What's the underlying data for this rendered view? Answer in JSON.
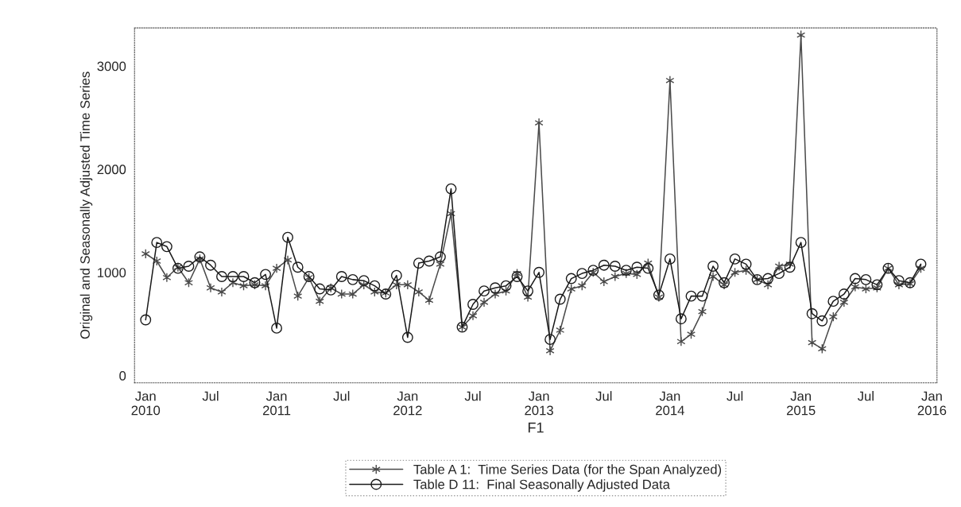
{
  "chart_data": {
    "type": "line",
    "xlabel": "F1",
    "ylabel": "Original and Seasonally Adjusted Time Series",
    "x": [
      "2010-01",
      "2010-02",
      "2010-03",
      "2010-04",
      "2010-05",
      "2010-06",
      "2010-07",
      "2010-08",
      "2010-09",
      "2010-10",
      "2010-11",
      "2010-12",
      "2011-01",
      "2011-02",
      "2011-03",
      "2011-04",
      "2011-05",
      "2011-06",
      "2011-07",
      "2011-08",
      "2011-09",
      "2011-10",
      "2011-11",
      "2011-12",
      "2012-01",
      "2012-02",
      "2012-03",
      "2012-04",
      "2012-05",
      "2012-06",
      "2012-07",
      "2012-08",
      "2012-09",
      "2012-10",
      "2012-11",
      "2012-12",
      "2013-01",
      "2013-02",
      "2013-03",
      "2013-04",
      "2013-05",
      "2013-06",
      "2013-07",
      "2013-08",
      "2013-09",
      "2013-10",
      "2013-11",
      "2013-12",
      "2014-01",
      "2014-02",
      "2014-03",
      "2014-04",
      "2014-05",
      "2014-06",
      "2014-07",
      "2014-08",
      "2014-09",
      "2014-10",
      "2014-11",
      "2014-12",
      "2015-01",
      "2015-02",
      "2015-03",
      "2015-04",
      "2015-05",
      "2015-06",
      "2015-07",
      "2015-08",
      "2015-09",
      "2015-10",
      "2015-11",
      "2015-12"
    ],
    "series": [
      {
        "name": "Table A 1:  Time Series Data (for the Span Analyzed)",
        "color": "#4a4a4a",
        "marker": "cross",
        "values": [
          1180,
          1110,
          950,
          1050,
          900,
          1130,
          850,
          810,
          900,
          870,
          880,
          870,
          1040,
          1120,
          770,
          950,
          720,
          850,
          790,
          790,
          880,
          810,
          800,
          880,
          880,
          810,
          730,
          1080,
          1570,
          470,
          580,
          710,
          790,
          820,
          990,
          760,
          2450,
          240,
          440,
          840,
          870,
          1000,
          910,
          960,
          990,
          980,
          1090,
          760,
          2860,
          330,
          400,
          620,
          960,
          880,
          1000,
          1020,
          930,
          880,
          1060,
          1080,
          3300,
          320,
          260,
          570,
          710,
          860,
          840,
          850,
          1040,
          880,
          890,
          1040
        ]
      },
      {
        "name": "Table D 11:  Final Seasonally Adjusted Data",
        "color": "#1a1a1a",
        "marker": "circle",
        "values": [
          540,
          1290,
          1250,
          1040,
          1060,
          1150,
          1070,
          960,
          960,
          960,
          900,
          980,
          460,
          1340,
          1050,
          960,
          840,
          830,
          960,
          930,
          920,
          870,
          790,
          970,
          370,
          1090,
          1110,
          1150,
          1810,
          470,
          690,
          820,
          850,
          870,
          960,
          820,
          1000,
          350,
          740,
          940,
          990,
          1020,
          1070,
          1060,
          1020,
          1050,
          1040,
          780,
          1130,
          550,
          770,
          770,
          1060,
          900,
          1130,
          1080,
          930,
          940,
          990,
          1050,
          1290,
          600,
          530,
          720,
          790,
          940,
          930,
          880,
          1040,
          920,
          900,
          1080
        ]
      }
    ],
    "xlim": [
      "2009-12-01",
      "2016-01-15"
    ],
    "xticks": [
      {
        "value": "2010-01",
        "label": "Jan\n2010"
      },
      {
        "value": "2010-07",
        "label": "Jul"
      },
      {
        "value": "2011-01",
        "label": "Jan\n2011"
      },
      {
        "value": "2011-07",
        "label": "Jul"
      },
      {
        "value": "2012-01",
        "label": "Jan\n2012"
      },
      {
        "value": "2012-07",
        "label": "Jul"
      },
      {
        "value": "2013-01",
        "label": "Jan\n2013"
      },
      {
        "value": "2013-07",
        "label": "Jul"
      },
      {
        "value": "2014-01",
        "label": "Jan\n2014"
      },
      {
        "value": "2014-07",
        "label": "Jul"
      },
      {
        "value": "2015-01",
        "label": "Jan\n2015"
      },
      {
        "value": "2015-07",
        "label": "Jul"
      },
      {
        "value": "2016-01",
        "label": "Jan\n2016"
      }
    ],
    "ylim": [
      -70,
      3370
    ],
    "yticks": [
      0,
      1000,
      2000,
      3000
    ],
    "grid": false,
    "legend": "bottom",
    "line_style": "solid"
  }
}
